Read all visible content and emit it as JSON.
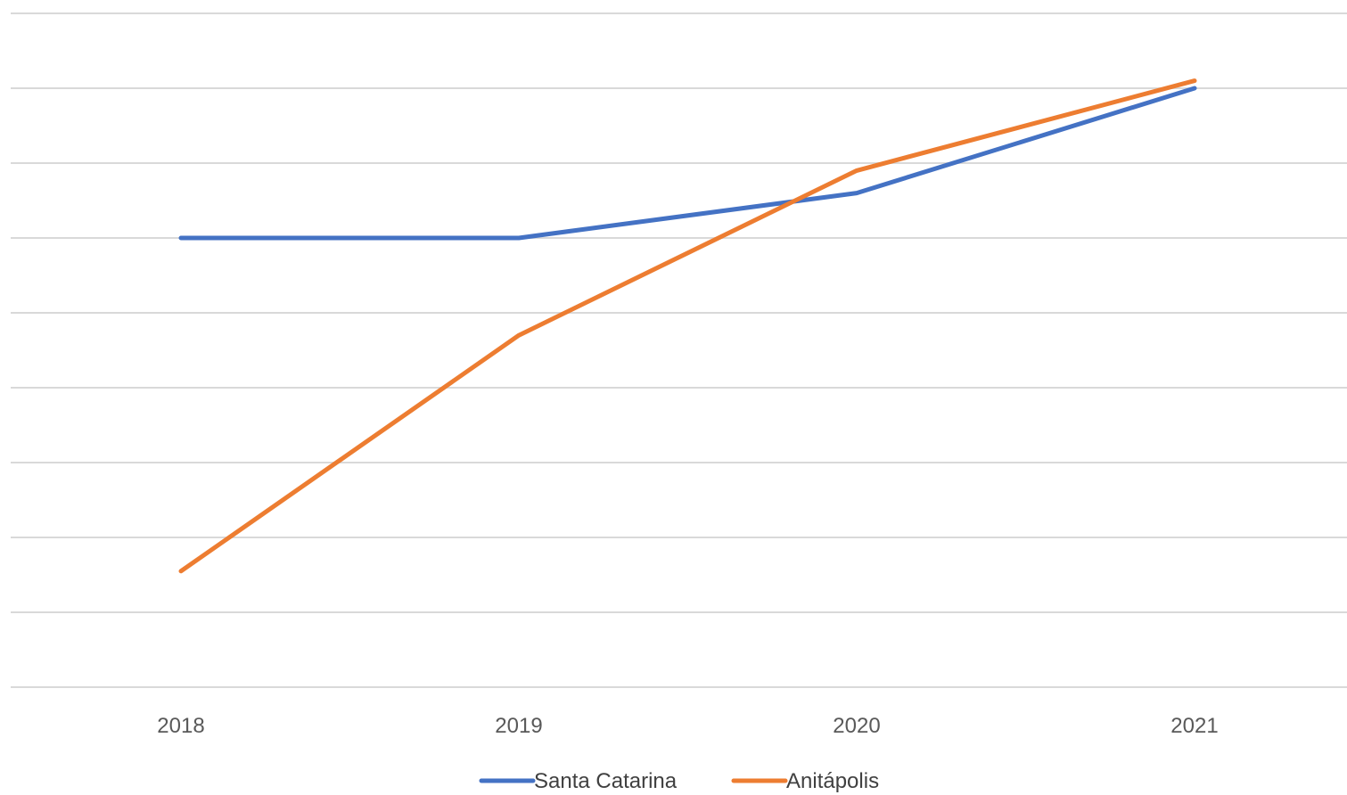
{
  "chart_data": {
    "type": "line",
    "title": "",
    "xlabel": "",
    "ylabel": "",
    "categories": [
      "2018",
      "2019",
      "2020",
      "2021"
    ],
    "series": [
      {
        "name": "Santa Catarina",
        "color": "#4472C4",
        "values": [
          6.0,
          6.0,
          6.6,
          8.0
        ]
      },
      {
        "name": "Anitápolis",
        "color": "#ED7D31",
        "values": [
          1.55,
          4.7,
          6.9,
          8.1
        ]
      }
    ],
    "ylim": [
      0,
      9
    ],
    "gridlines": {
      "count": 10,
      "color": "#D9D9D9"
    },
    "y_tick_labels_shown": false,
    "legend_position": "bottom"
  }
}
